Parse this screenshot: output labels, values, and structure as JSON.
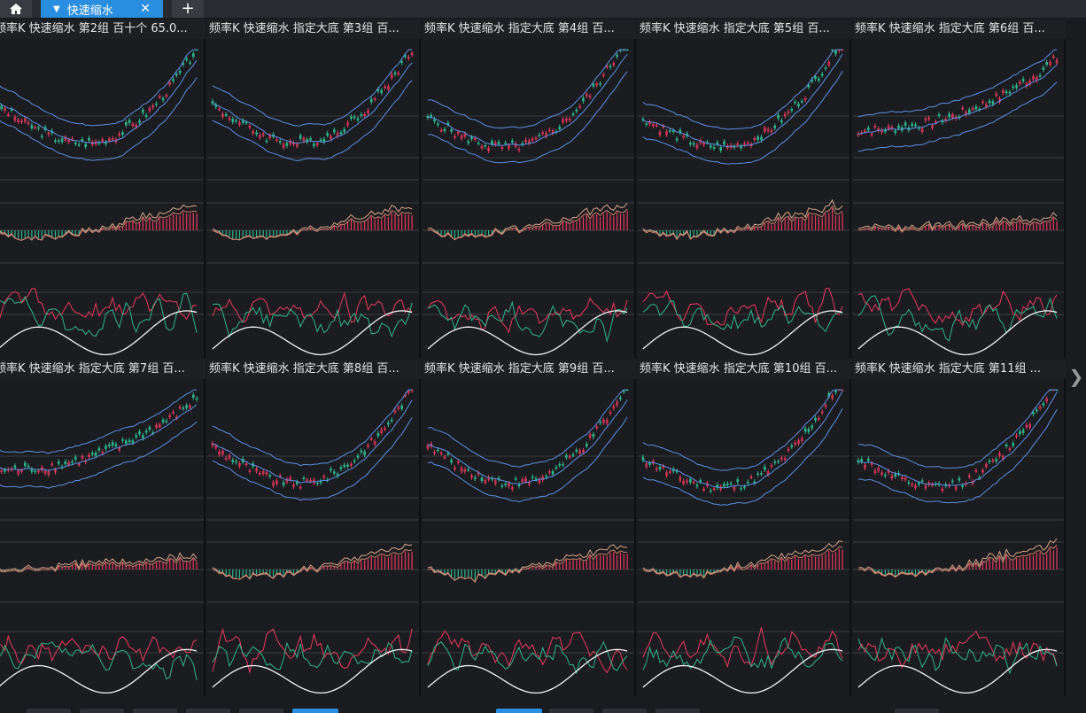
{
  "tabbar": {
    "home_icon": "home-icon",
    "active_tab_label": "快速缩水",
    "dropdown_icon": "triangle-down-icon",
    "close_icon": "close-icon",
    "add_icon": "plus-icon"
  },
  "colors": {
    "accent": "#2a8ee0",
    "up": "#e83a5f",
    "down": "#2fb58a",
    "boll": "#5b8fe0",
    "grid": "#3a3b40",
    "white_line": "#f2f2f2",
    "macd_dif": "#d4a58a"
  },
  "panels": [
    {
      "title": "频率K  快速缩水  第2组  百十个  65.0..."
    },
    {
      "title": "频率K  快速缩水  指定大底 第3组  百..."
    },
    {
      "title": "频率K  快速缩水  指定大底 第4组  百..."
    },
    {
      "title": "频率K  快速缩水  指定大底 第5组  百..."
    },
    {
      "title": "频率K  快速缩水  指定大底 第6组  百..."
    },
    {
      "title": "频率K  快速缩水  指定大底 第7组  百..."
    },
    {
      "title": "频率K  快速缩水  指定大底 第8组  百..."
    },
    {
      "title": "频率K  快速缩水  指定大底 第9组  百..."
    },
    {
      "title": "频率K  快速缩水  指定大底 第10组  百..."
    },
    {
      "title": "频率K  快速缩水  指定大底 第11组  ..."
    }
  ],
  "right_scroll_icon": "chevron-right-icon"
}
